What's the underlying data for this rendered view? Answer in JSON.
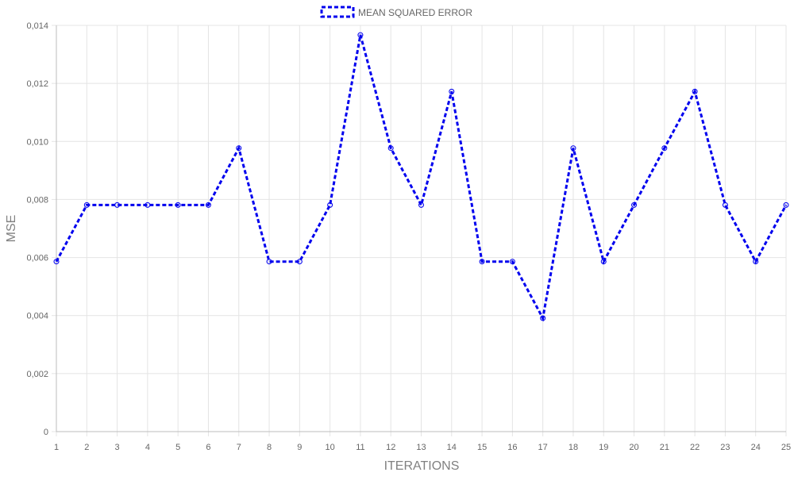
{
  "chart_data": {
    "type": "line",
    "title": "",
    "xlabel": "ITERATIONS",
    "ylabel": "MSE",
    "categories": [
      "1",
      "2",
      "3",
      "4",
      "5",
      "6",
      "7",
      "8",
      "9",
      "10",
      "11",
      "12",
      "13",
      "14",
      "15",
      "16",
      "17",
      "18",
      "19",
      "20",
      "21",
      "22",
      "23",
      "24",
      "25"
    ],
    "y_ticks": [
      "0",
      "0,002",
      "0,004",
      "0,006",
      "0,008",
      "0,010",
      "0,012",
      "0,014"
    ],
    "ylim": [
      0,
      0.014
    ],
    "grid": true,
    "legend_position": "top-center",
    "series": [
      {
        "name": "MEAN SQUARED ERROR",
        "color": "#0000ee",
        "line_style": "dashed",
        "marker": "circle",
        "values": [
          0.00586,
          0.00781,
          0.00781,
          0.00781,
          0.00781,
          0.00781,
          0.00977,
          0.00586,
          0.00586,
          0.00781,
          0.01367,
          0.00977,
          0.00781,
          0.01172,
          0.00586,
          0.00586,
          0.00391,
          0.00977,
          0.00586,
          0.00781,
          0.00977,
          0.01172,
          0.00781,
          0.00586,
          0.00781
        ]
      }
    ]
  },
  "colors": {
    "grid": "#e4e4e4",
    "axis": "#bdbdbd",
    "tick_text": "#666666",
    "axis_label": "#808080"
  }
}
